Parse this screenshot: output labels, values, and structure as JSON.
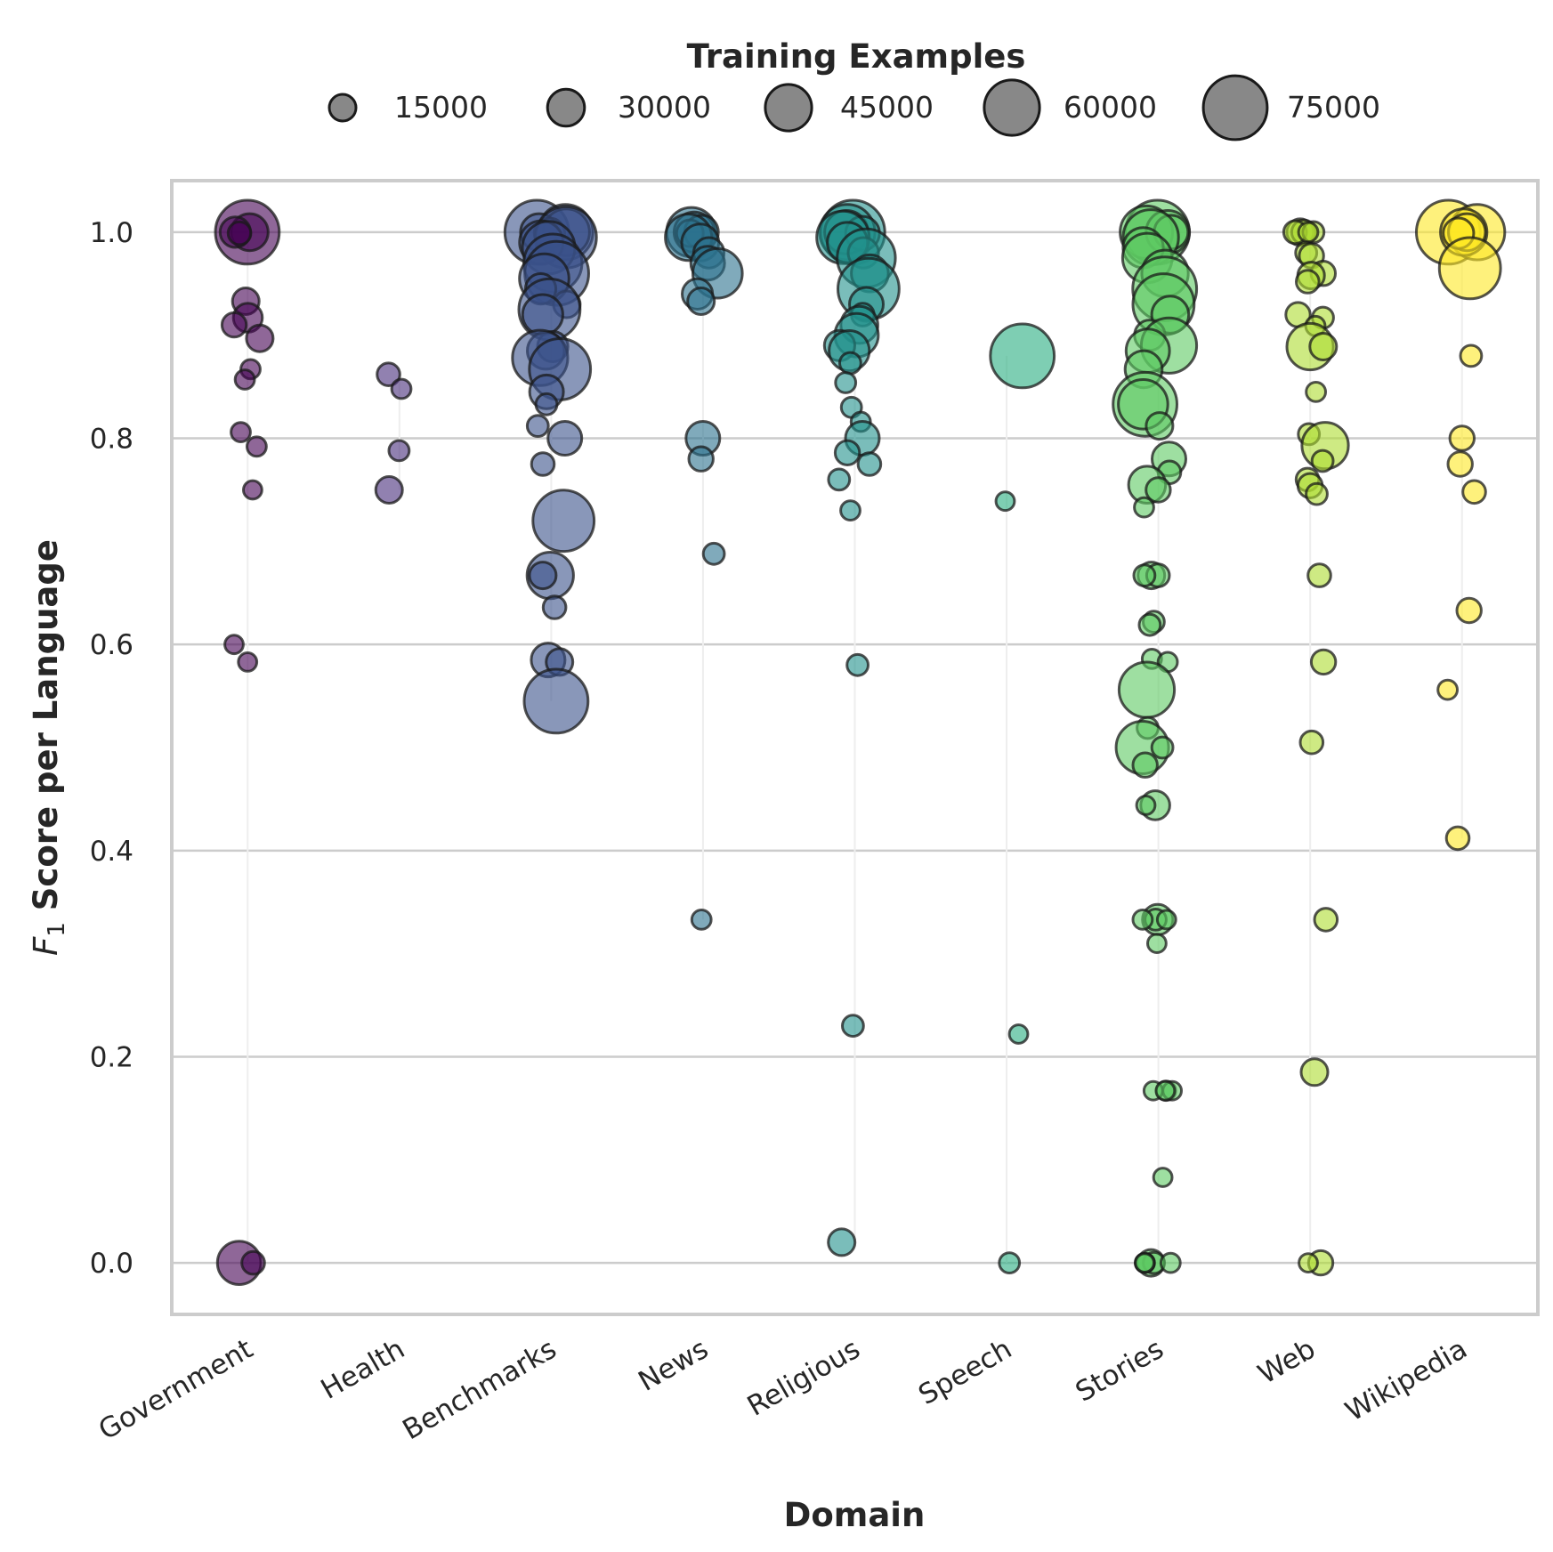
{
  "chart_data": {
    "type": "scatter",
    "subtype": "strip plot with violin background",
    "title": "",
    "xlabel": "Domain",
    "ylabel_var": "F",
    "ylabel_sub": "1",
    "ylabel_rest": " Score per Language",
    "ylim": [
      -0.05,
      1.05
    ],
    "yticks": [
      0.0,
      0.2,
      0.4,
      0.6,
      0.8,
      1.0
    ],
    "ytick_labels": [
      "0.0",
      "0.2",
      "0.4",
      "0.6",
      "0.8",
      "1.0"
    ],
    "grid": true,
    "categories": [
      "Government",
      "Health",
      "Benchmarks",
      "News",
      "Religious",
      "Speech",
      "Stories",
      "Web",
      "Wikipedia"
    ],
    "colors": [
      "#440154",
      "#472d7b",
      "#3b528b",
      "#2c728e",
      "#21918c",
      "#28ae80",
      "#5ec962",
      "#addc30",
      "#fde725"
    ],
    "legend": {
      "title": "Training Examples",
      "position": "top-center",
      "entries": [
        {
          "label": "15000",
          "value": 15000
        },
        {
          "label": "30000",
          "value": 30000
        },
        {
          "label": "45000",
          "value": 45000
        },
        {
          "label": "60000",
          "value": 60000
        },
        {
          "label": "75000",
          "value": 75000
        }
      ]
    },
    "series": [
      {
        "name": "Government",
        "points": [
          {
            "y": 1.0,
            "n": 75000
          },
          {
            "y": 1.0,
            "n": 30000
          },
          {
            "y": 1.0,
            "n": 20000
          },
          {
            "y": 0.999,
            "n": 10000
          },
          {
            "y": 0.933,
            "n": 15000
          },
          {
            "y": 0.917,
            "n": 18000
          },
          {
            "y": 0.91,
            "n": 12000
          },
          {
            "y": 0.897,
            "n": 15000
          },
          {
            "y": 0.867,
            "n": 6000
          },
          {
            "y": 0.857,
            "n": 6000
          },
          {
            "y": 0.806,
            "n": 6000
          },
          {
            "y": 0.792,
            "n": 6000
          },
          {
            "y": 0.75,
            "n": 5000
          },
          {
            "y": 0.6,
            "n": 5000
          },
          {
            "y": 0.583,
            "n": 5000
          },
          {
            "y": 0.0,
            "n": 40000
          },
          {
            "y": 0.0,
            "n": 10000
          }
        ]
      },
      {
        "name": "Health",
        "points": [
          {
            "y": 0.862,
            "n": 10000
          },
          {
            "y": 0.848,
            "n": 6000
          },
          {
            "y": 0.788,
            "n": 7000
          },
          {
            "y": 0.75,
            "n": 15000
          }
        ]
      },
      {
        "name": "Benchmarks",
        "points": [
          {
            "y": 1.0,
            "n": 75000
          },
          {
            "y": 1.0,
            "n": 60000
          },
          {
            "y": 1.0,
            "n": 45000
          },
          {
            "y": 1.0,
            "n": 30000
          },
          {
            "y": 0.999,
            "n": 20000
          },
          {
            "y": 0.995,
            "n": 70000
          },
          {
            "y": 0.99,
            "n": 40000
          },
          {
            "y": 0.985,
            "n": 55000
          },
          {
            "y": 0.97,
            "n": 65000
          },
          {
            "y": 0.96,
            "n": 75000
          },
          {
            "y": 0.955,
            "n": 50000
          },
          {
            "y": 0.945,
            "n": 20000
          },
          {
            "y": 0.93,
            "n": 15000
          },
          {
            "y": 0.925,
            "n": 70000
          },
          {
            "y": 0.92,
            "n": 35000
          },
          {
            "y": 0.889,
            "n": 20000
          },
          {
            "y": 0.885,
            "n": 30000
          },
          {
            "y": 0.878,
            "n": 60000
          },
          {
            "y": 0.867,
            "n": 70000
          },
          {
            "y": 0.845,
            "n": 25000
          },
          {
            "y": 0.833,
            "n": 8000
          },
          {
            "y": 0.812,
            "n": 8000
          },
          {
            "y": 0.8,
            "n": 25000
          },
          {
            "y": 0.775,
            "n": 10000
          },
          {
            "y": 0.72,
            "n": 70000
          },
          {
            "y": 0.667,
            "n": 45000
          },
          {
            "y": 0.667,
            "n": 15000
          },
          {
            "y": 0.636,
            "n": 10000
          },
          {
            "y": 0.585,
            "n": 25000
          },
          {
            "y": 0.583,
            "n": 15000
          },
          {
            "y": 0.545,
            "n": 75000
          }
        ]
      },
      {
        "name": "News",
        "points": [
          {
            "y": 1.0,
            "n": 50000
          },
          {
            "y": 1.0,
            "n": 35000
          },
          {
            "y": 1.0,
            "n": 25000
          },
          {
            "y": 0.999,
            "n": 15000
          },
          {
            "y": 0.995,
            "n": 45000
          },
          {
            "y": 0.99,
            "n": 30000
          },
          {
            "y": 0.98,
            "n": 20000
          },
          {
            "y": 0.97,
            "n": 25000
          },
          {
            "y": 0.96,
            "n": 50000
          },
          {
            "y": 0.94,
            "n": 20000
          },
          {
            "y": 0.933,
            "n": 15000
          },
          {
            "y": 0.8,
            "n": 25000
          },
          {
            "y": 0.78,
            "n": 12000
          },
          {
            "y": 0.688,
            "n": 8000
          },
          {
            "y": 0.333,
            "n": 6000
          }
        ]
      },
      {
        "name": "Religious",
        "points": [
          {
            "y": 1.0,
            "n": 75000
          },
          {
            "y": 1.0,
            "n": 60000
          },
          {
            "y": 1.0,
            "n": 40000
          },
          {
            "y": 0.999,
            "n": 25000
          },
          {
            "y": 0.995,
            "n": 55000
          },
          {
            "y": 0.99,
            "n": 35000
          },
          {
            "y": 0.98,
            "n": 20000
          },
          {
            "y": 0.975,
            "n": 65000
          },
          {
            "y": 0.96,
            "n": 30000
          },
          {
            "y": 0.945,
            "n": 70000
          },
          {
            "y": 0.93,
            "n": 25000
          },
          {
            "y": 0.92,
            "n": 10000
          },
          {
            "y": 0.91,
            "n": 30000
          },
          {
            "y": 0.9,
            "n": 40000
          },
          {
            "y": 0.89,
            "n": 20000
          },
          {
            "y": 0.885,
            "n": 35000
          },
          {
            "y": 0.873,
            "n": 8000
          },
          {
            "y": 0.854,
            "n": 7000
          },
          {
            "y": 0.83,
            "n": 7000
          },
          {
            "y": 0.816,
            "n": 6000
          },
          {
            "y": 0.8,
            "n": 25000
          },
          {
            "y": 0.786,
            "n": 12000
          },
          {
            "y": 0.775,
            "n": 10000
          },
          {
            "y": 0.76,
            "n": 8000
          },
          {
            "y": 0.73,
            "n": 6000
          },
          {
            "y": 0.58,
            "n": 8000
          },
          {
            "y": 0.23,
            "n": 8000
          },
          {
            "y": 0.02,
            "n": 15000
          }
        ]
      },
      {
        "name": "Speech",
        "points": [
          {
            "y": 0.88,
            "n": 75000
          },
          {
            "y": 0.739,
            "n": 5000
          },
          {
            "y": 0.222,
            "n": 5000
          },
          {
            "y": 0.0,
            "n": 7000
          }
        ]
      },
      {
        "name": "Stories",
        "points": [
          {
            "y": 1.0,
            "n": 75000
          },
          {
            "y": 1.0,
            "n": 55000
          },
          {
            "y": 1.0,
            "n": 40000
          },
          {
            "y": 1.0,
            "n": 25000
          },
          {
            "y": 0.995,
            "n": 60000
          },
          {
            "y": 0.985,
            "n": 35000
          },
          {
            "y": 0.975,
            "n": 50000
          },
          {
            "y": 0.96,
            "n": 45000
          },
          {
            "y": 0.945,
            "n": 75000
          },
          {
            "y": 0.93,
            "n": 70000
          },
          {
            "y": 0.92,
            "n": 30000
          },
          {
            "y": 0.9,
            "n": 20000
          },
          {
            "y": 0.89,
            "n": 60000
          },
          {
            "y": 0.885,
            "n": 40000
          },
          {
            "y": 0.867,
            "n": 30000
          },
          {
            "y": 0.833,
            "n": 75000
          },
          {
            "y": 0.833,
            "n": 50000
          },
          {
            "y": 0.812,
            "n": 15000
          },
          {
            "y": 0.78,
            "n": 25000
          },
          {
            "y": 0.767,
            "n": 10000
          },
          {
            "y": 0.755,
            "n": 30000
          },
          {
            "y": 0.75,
            "n": 12000
          },
          {
            "y": 0.733,
            "n": 6000
          },
          {
            "y": 0.667,
            "n": 15000
          },
          {
            "y": 0.667,
            "n": 10000
          },
          {
            "y": 0.667,
            "n": 8000
          },
          {
            "y": 0.622,
            "n": 8000
          },
          {
            "y": 0.619,
            "n": 8000
          },
          {
            "y": 0.586,
            "n": 6000
          },
          {
            "y": 0.583,
            "n": 6000
          },
          {
            "y": 0.556,
            "n": 60000
          },
          {
            "y": 0.519,
            "n": 8000
          },
          {
            "y": 0.5,
            "n": 55000
          },
          {
            "y": 0.5,
            "n": 8000
          },
          {
            "y": 0.483,
            "n": 12000
          },
          {
            "y": 0.444,
            "n": 18000
          },
          {
            "y": 0.444,
            "n": 5000
          },
          {
            "y": 0.333,
            "n": 20000
          },
          {
            "y": 0.333,
            "n": 8000
          },
          {
            "y": 0.333,
            "n": 6000
          },
          {
            "y": 0.333,
            "n": 5000
          },
          {
            "y": 0.31,
            "n": 5000
          },
          {
            "y": 0.167,
            "n": 6000
          },
          {
            "y": 0.167,
            "n": 5000
          },
          {
            "y": 0.167,
            "n": 5000
          },
          {
            "y": 0.167,
            "n": 5000
          },
          {
            "y": 0.083,
            "n": 5000
          },
          {
            "y": 0.0,
            "n": 15000
          },
          {
            "y": 0.0,
            "n": 8000
          },
          {
            "y": 0.0,
            "n": 6000
          },
          {
            "y": 0.0,
            "n": 6000
          },
          {
            "y": 0.0,
            "n": 5000
          },
          {
            "y": 0.0,
            "n": 5000
          }
        ]
      },
      {
        "name": "Web",
        "points": [
          {
            "y": 1.0,
            "n": 15000
          },
          {
            "y": 1.0,
            "n": 12000
          },
          {
            "y": 1.0,
            "n": 10000
          },
          {
            "y": 1.0,
            "n": 8000
          },
          {
            "y": 1.0,
            "n": 6000
          },
          {
            "y": 0.98,
            "n": 8000
          },
          {
            "y": 0.977,
            "n": 12000
          },
          {
            "y": 0.96,
            "n": 12000
          },
          {
            "y": 0.958,
            "n": 15000
          },
          {
            "y": 0.952,
            "n": 10000
          },
          {
            "y": 0.92,
            "n": 12000
          },
          {
            "y": 0.917,
            "n": 8000
          },
          {
            "y": 0.909,
            "n": 6000
          },
          {
            "y": 0.889,
            "n": 45000
          },
          {
            "y": 0.889,
            "n": 15000
          },
          {
            "y": 0.845,
            "n": 6000
          },
          {
            "y": 0.804,
            "n": 8000
          },
          {
            "y": 0.793,
            "n": 45000
          },
          {
            "y": 0.778,
            "n": 8000
          },
          {
            "y": 0.76,
            "n": 10000
          },
          {
            "y": 0.754,
            "n": 12000
          },
          {
            "y": 0.746,
            "n": 8000
          },
          {
            "y": 0.667,
            "n": 10000
          },
          {
            "y": 0.583,
            "n": 12000
          },
          {
            "y": 0.505,
            "n": 10000
          },
          {
            "y": 0.333,
            "n": 10000
          },
          {
            "y": 0.185,
            "n": 15000
          },
          {
            "y": 0.0,
            "n": 12000
          },
          {
            "y": 0.0,
            "n": 5000
          }
        ]
      },
      {
        "name": "Wikipedia",
        "points": [
          {
            "y": 1.0,
            "n": 75000
          },
          {
            "y": 1.0,
            "n": 60000
          },
          {
            "y": 1.0,
            "n": 45000
          },
          {
            "y": 1.0,
            "n": 30000
          },
          {
            "y": 0.999,
            "n": 20000
          },
          {
            "y": 0.965,
            "n": 70000
          },
          {
            "y": 0.88,
            "n": 8000
          },
          {
            "y": 0.8,
            "n": 12000
          },
          {
            "y": 0.775,
            "n": 12000
          },
          {
            "y": 0.748,
            "n": 10000
          },
          {
            "y": 0.633,
            "n": 12000
          },
          {
            "y": 0.556,
            "n": 6000
          },
          {
            "y": 0.412,
            "n": 10000
          }
        ]
      }
    ]
  }
}
